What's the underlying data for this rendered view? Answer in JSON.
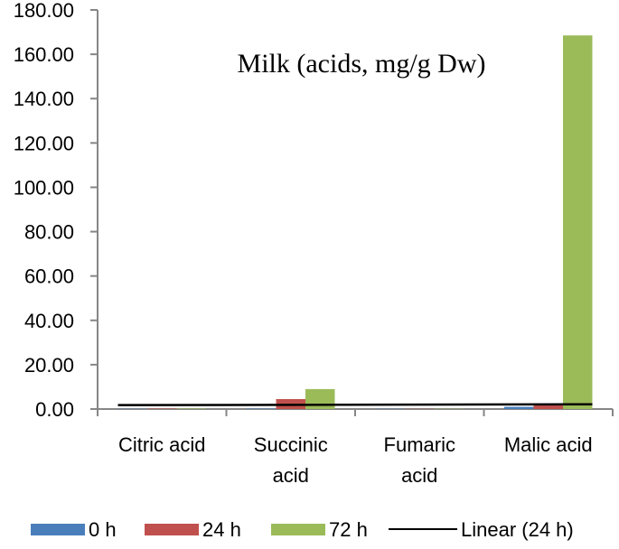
{
  "chart_data": {
    "type": "bar",
    "title": "Milk (acids, mg/g Dw)",
    "xlabel": "",
    "ylabel": "",
    "ylim": [
      0,
      180
    ],
    "yticks": [
      "0.00",
      "20.00",
      "40.00",
      "60.00",
      "80.00",
      "100.00",
      "120.00",
      "140.00",
      "160.00",
      "180.00"
    ],
    "y_tick_values": [
      0,
      20,
      40,
      60,
      80,
      100,
      120,
      140,
      160,
      180
    ],
    "categories": [
      [
        "Citric acid"
      ],
      [
        "Succinic",
        "acid"
      ],
      [
        "Fumaric",
        "acid"
      ],
      [
        "Malic acid"
      ]
    ],
    "series": [
      {
        "name": "0 h",
        "color": "#4a7ebb",
        "values": [
          0.1,
          0.2,
          0.1,
          1.0
        ]
      },
      {
        "name": "24 h",
        "color": "#c0504d",
        "values": [
          0.2,
          4.5,
          0.1,
          2.2
        ]
      },
      {
        "name": "72 h",
        "color": "#9bbb59",
        "values": [
          0.2,
          9.0,
          0.1,
          168.5
        ]
      }
    ],
    "trendline": {
      "name": "Linear (24 h)",
      "color": "#000000",
      "values": [
        1.8,
        1.9,
        2.0,
        2.1
      ]
    },
    "grid": false,
    "legend_position": "bottom"
  }
}
